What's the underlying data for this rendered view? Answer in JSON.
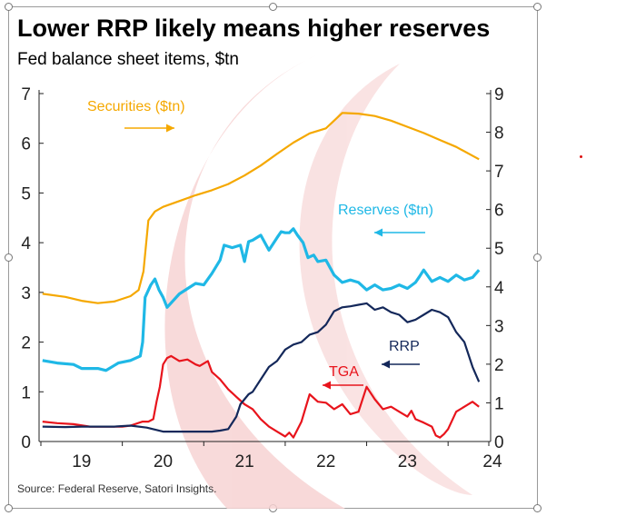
{
  "chart_data": {
    "type": "line",
    "title": "Lower RRP likely means higher reserves",
    "subtitle": "Fed balance sheet items, $tn",
    "source": "Source: Federal Reserve, Satori Insights.",
    "x_ticks": [
      "19",
      "20",
      "21",
      "22",
      "23",
      "24"
    ],
    "x_range": [
      2018.5,
      2024.0
    ],
    "y_left": {
      "range": [
        0,
        7
      ],
      "ticks": [
        "0",
        "1",
        "2",
        "3",
        "4",
        "5",
        "6",
        "7"
      ]
    },
    "y_right": {
      "range": [
        0,
        9
      ],
      "ticks": [
        "0",
        "1",
        "2",
        "3",
        "4",
        "5",
        "6",
        "7",
        "8",
        "9"
      ]
    },
    "grid": false,
    "legend": "inline labels with arrows",
    "series": [
      {
        "name": "Securities ($tn)",
        "label": "Securities ($tn)",
        "axis": "right",
        "color": "#f5a800",
        "arrow": "right",
        "x": [
          2018.52,
          2018.8,
          2019.0,
          2019.2,
          2019.4,
          2019.6,
          2019.7,
          2019.76,
          2019.82,
          2019.9,
          2020.0,
          2020.2,
          2020.4,
          2020.6,
          2020.8,
          2021.0,
          2021.2,
          2021.4,
          2021.6,
          2021.8,
          2022.0,
          2022.2,
          2022.4,
          2022.6,
          2022.8,
          2023.0,
          2023.2,
          2023.4,
          2023.6,
          2023.88
        ],
        "y": [
          3.82,
          3.74,
          3.64,
          3.58,
          3.62,
          3.76,
          3.92,
          4.4,
          5.72,
          5.95,
          6.07,
          6.22,
          6.37,
          6.5,
          6.66,
          6.88,
          7.14,
          7.44,
          7.73,
          7.97,
          8.1,
          8.5,
          8.48,
          8.42,
          8.3,
          8.14,
          7.98,
          7.8,
          7.62,
          7.3
        ]
      },
      {
        "name": "Reserves ($tn)",
        "label": "Reserves ($tn)",
        "axis": "left",
        "color": "#1fb8e6",
        "arrow": "left",
        "x": [
          2018.52,
          2018.7,
          2018.9,
          2019.0,
          2019.2,
          2019.3,
          2019.45,
          2019.6,
          2019.72,
          2019.75,
          2019.78,
          2019.85,
          2019.9,
          2019.95,
          2020.0,
          2020.05,
          2020.2,
          2020.4,
          2020.5,
          2020.6,
          2020.7,
          2020.75,
          2020.85,
          2020.95,
          2021.0,
          2021.05,
          2021.1,
          2021.2,
          2021.3,
          2021.4,
          2021.45,
          2021.5,
          2021.55,
          2021.6,
          2021.65,
          2021.72,
          2021.78,
          2021.85,
          2021.9,
          2022.0,
          2022.1,
          2022.2,
          2022.3,
          2022.4,
          2022.5,
          2022.6,
          2022.7,
          2022.8,
          2022.9,
          2023.0,
          2023.1,
          2023.15,
          2023.2,
          2023.3,
          2023.4,
          2023.5,
          2023.6,
          2023.7,
          2023.8,
          2023.88
        ],
        "y": [
          1.63,
          1.58,
          1.55,
          1.47,
          1.47,
          1.43,
          1.58,
          1.63,
          1.72,
          2.0,
          2.9,
          3.15,
          3.27,
          3.05,
          2.9,
          2.7,
          2.97,
          3.18,
          3.15,
          3.38,
          3.65,
          3.95,
          3.9,
          3.95,
          3.62,
          4.02,
          4.05,
          4.15,
          3.85,
          4.1,
          4.22,
          4.2,
          4.2,
          4.28,
          4.15,
          4.0,
          3.7,
          3.75,
          3.62,
          3.65,
          3.35,
          3.2,
          3.25,
          3.2,
          3.05,
          3.15,
          3.05,
          3.08,
          3.15,
          3.08,
          3.2,
          3.32,
          3.45,
          3.22,
          3.3,
          3.22,
          3.35,
          3.25,
          3.3,
          3.45
        ]
      },
      {
        "name": "RRP",
        "label": "RRP",
        "axis": "left",
        "color": "#14285a",
        "arrow": "left",
        "x": [
          2018.52,
          2018.8,
          2019.0,
          2019.2,
          2019.4,
          2019.6,
          2019.8,
          2020.0,
          2020.2,
          2020.4,
          2020.6,
          2020.7,
          2020.8,
          2020.9,
          2020.95,
          2021.0,
          2021.05,
          2021.1,
          2021.2,
          2021.3,
          2021.4,
          2021.5,
          2021.6,
          2021.7,
          2021.8,
          2021.9,
          2022.0,
          2022.1,
          2022.2,
          2022.3,
          2022.4,
          2022.5,
          2022.6,
          2022.7,
          2022.8,
          2022.9,
          2023.0,
          2023.1,
          2023.2,
          2023.3,
          2023.4,
          2023.5,
          2023.6,
          2023.7,
          2023.8,
          2023.88
        ],
        "y": [
          0.3,
          0.29,
          0.3,
          0.3,
          0.3,
          0.32,
          0.28,
          0.2,
          0.2,
          0.2,
          0.2,
          0.22,
          0.25,
          0.5,
          0.75,
          0.85,
          0.95,
          1.0,
          1.25,
          1.5,
          1.62,
          1.85,
          1.95,
          2.0,
          2.15,
          2.2,
          2.35,
          2.62,
          2.7,
          2.72,
          2.75,
          2.78,
          2.65,
          2.7,
          2.6,
          2.55,
          2.4,
          2.45,
          2.55,
          2.65,
          2.6,
          2.5,
          2.2,
          2.0,
          1.5,
          1.2
        ]
      },
      {
        "name": "TGA",
        "label": "TGA",
        "axis": "left",
        "color": "#e8141c",
        "arrow": "left",
        "x": [
          2018.52,
          2018.7,
          2018.9,
          2019.1,
          2019.3,
          2019.5,
          2019.6,
          2019.75,
          2019.82,
          2019.88,
          2019.92,
          2019.96,
          2020.0,
          2020.05,
          2020.1,
          2020.2,
          2020.3,
          2020.4,
          2020.45,
          2020.55,
          2020.6,
          2020.7,
          2020.8,
          2020.9,
          2021.0,
          2021.1,
          2021.2,
          2021.3,
          2021.4,
          2021.5,
          2021.55,
          2021.6,
          2021.7,
          2021.8,
          2021.9,
          2022.0,
          2022.1,
          2022.2,
          2022.3,
          2022.4,
          2022.5,
          2022.6,
          2022.7,
          2022.8,
          2022.9,
          2023.0,
          2023.05,
          2023.1,
          2023.2,
          2023.3,
          2023.35,
          2023.4,
          2023.45,
          2023.5,
          2023.6,
          2023.7,
          2023.8,
          2023.88
        ],
        "y": [
          0.4,
          0.37,
          0.35,
          0.3,
          0.3,
          0.3,
          0.32,
          0.4,
          0.4,
          0.45,
          0.8,
          1.1,
          1.55,
          1.68,
          1.72,
          1.62,
          1.65,
          1.55,
          1.52,
          1.62,
          1.4,
          1.25,
          1.05,
          0.9,
          0.75,
          0.65,
          0.45,
          0.3,
          0.2,
          0.1,
          0.18,
          0.08,
          0.4,
          0.95,
          0.8,
          0.78,
          0.65,
          0.75,
          0.55,
          0.6,
          1.1,
          0.85,
          0.65,
          0.7,
          0.6,
          0.5,
          0.62,
          0.45,
          0.38,
          0.3,
          0.12,
          0.08,
          0.15,
          0.25,
          0.6,
          0.7,
          0.8,
          0.7
        ]
      }
    ]
  }
}
